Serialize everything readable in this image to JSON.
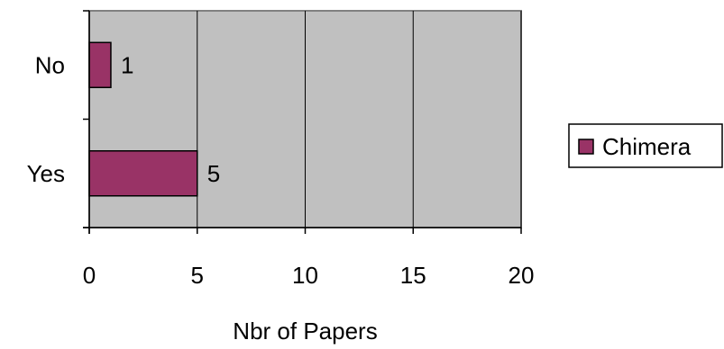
{
  "chart_data": {
    "type": "bar",
    "orientation": "horizontal",
    "categories": [
      "No",
      "Yes"
    ],
    "series": [
      {
        "name": "Chimera",
        "values": [
          1,
          5
        ],
        "color": "#993366"
      }
    ],
    "data_labels": [
      "1",
      "5"
    ],
    "xlabel": "Nbr of Papers",
    "xlim": [
      0,
      20
    ],
    "xticks": [
      0,
      5,
      10,
      15,
      20
    ],
    "grid": true,
    "plot_background": "#c0c0c0",
    "legend": {
      "position": "right",
      "entries": [
        "Chimera"
      ]
    }
  }
}
